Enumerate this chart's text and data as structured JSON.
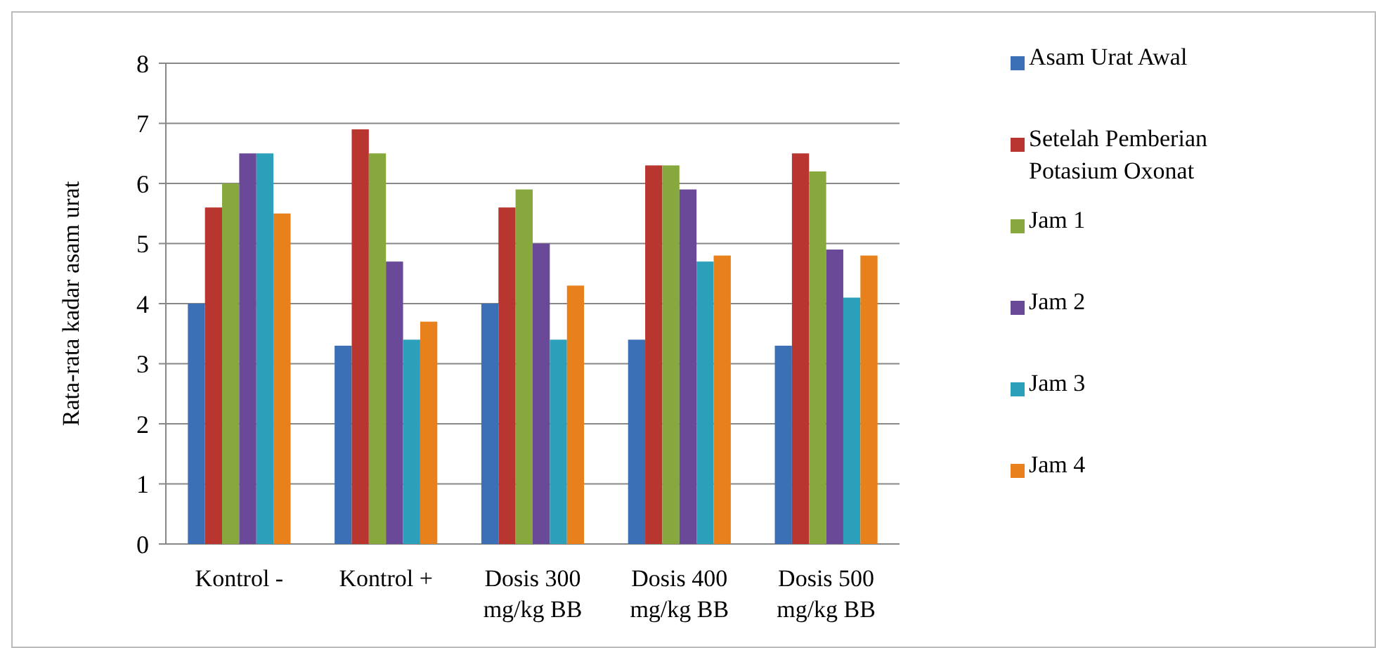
{
  "chart_data": {
    "type": "bar",
    "ylabel": "Rata-rata kadar asam urat",
    "categories": [
      "Kontrol -",
      "Kontrol +",
      "Dosis 300 mg/kg BB",
      "Dosis 400 mg/kg BB",
      "Dosis 500 mg/kg BB"
    ],
    "series": [
      {
        "name": "Asam Urat Awal",
        "color": "#3b6fb6",
        "values": [
          4,
          3.3,
          4,
          3.4,
          3.3
        ]
      },
      {
        "name": "Setelah Pemberian Potasium Oxonat",
        "color": "#b83530",
        "values": [
          5.6,
          6.9,
          5.6,
          6.3,
          6.5
        ]
      },
      {
        "name": "Jam 1",
        "color": "#86a83c",
        "values": [
          6,
          6.5,
          5.9,
          6.3,
          6.2
        ]
      },
      {
        "name": "Jam 2",
        "color": "#6a4a98",
        "values": [
          6.5,
          4.7,
          5,
          5.9,
          4.9
        ]
      },
      {
        "name": "Jam 3",
        "color": "#2c9fba",
        "values": [
          6.5,
          3.4,
          3.4,
          4.7,
          4.1
        ]
      },
      {
        "name": "Jam 4",
        "color": "#e8811c",
        "values": [
          5.5,
          3.7,
          4.3,
          4.8,
          4.8
        ]
      }
    ],
    "ylim": [
      0,
      8
    ],
    "yticks": [
      0,
      1,
      2,
      3,
      4,
      5,
      6,
      7,
      8
    ],
    "grid": "y",
    "legend": "right"
  }
}
